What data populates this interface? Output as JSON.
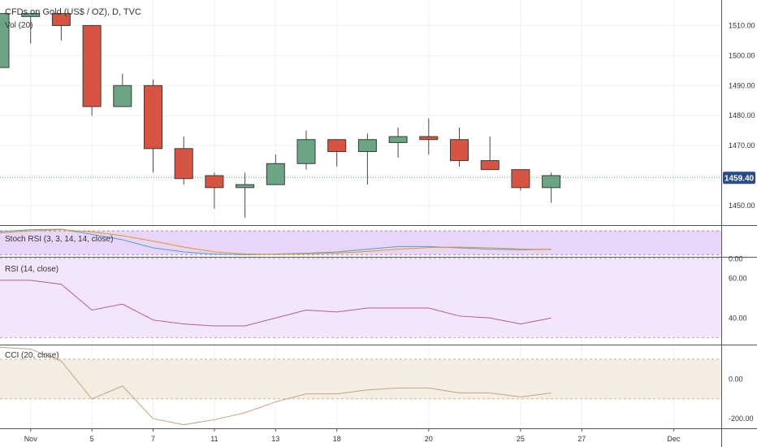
{
  "header": {
    "symbol_title": "CFDs on Gold (US$ / OZ), D, TVC",
    "volume_label": "Vol (20)"
  },
  "price_pane": {
    "last_price": "1459.40",
    "last_price_color": "#2a4a8a",
    "up_color": "#6ba583",
    "down_color": "#d75442",
    "y_ticks": [
      "1510.00",
      "1500.00",
      "1490.00",
      "1480.00",
      "1470.00",
      "1460.00",
      "1450.00"
    ]
  },
  "stoch_pane": {
    "label": "Stoch RSI (3, 3, 14, 14, close)",
    "y_ticks": [
      "0.00"
    ],
    "band_color": "#e9d5f7"
  },
  "rsi_pane": {
    "label": "RSI (14, close)",
    "y_ticks": [
      "60.00",
      "40.00"
    ],
    "band_color": "#f3e6fb",
    "line_color": "#b0608f"
  },
  "cci_pane": {
    "label": "CCI (20, close)",
    "y_ticks": [
      "0.00",
      "-200.00"
    ],
    "band_color": "#f3ede2",
    "line_color": "#c9a27e"
  },
  "x_axis": {
    "ticks": [
      "Nov",
      "5",
      "7",
      "11",
      "13",
      "18",
      "20",
      "25",
      "27",
      "Dec"
    ]
  },
  "chart_data": {
    "type": "candlestick",
    "title": "CFDs on Gold (US$ / OZ), D, TVC",
    "price_ylim": [
      1443.5,
      1518.5
    ],
    "candles": [
      {
        "open": 1496,
        "high": 1514,
        "low": 1496,
        "close": 1514
      },
      {
        "open": 1513,
        "high": 1514,
        "low": 1504,
        "close": 1514
      },
      {
        "open": 1514,
        "high": 1514,
        "low": 1505,
        "close": 1510
      },
      {
        "open": 1510,
        "high": 1510,
        "low": 1480,
        "close": 1483
      },
      {
        "open": 1483,
        "high": 1494,
        "low": 1483,
        "close": 1490
      },
      {
        "open": 1490,
        "high": 1492,
        "low": 1461,
        "close": 1469
      },
      {
        "open": 1469,
        "high": 1473,
        "low": 1457,
        "close": 1459
      },
      {
        "open": 1460,
        "high": 1461,
        "low": 1449,
        "close": 1456
      },
      {
        "open": 1456,
        "high": 1461,
        "low": 1446,
        "close": 1457
      },
      {
        "open": 1457,
        "high": 1467,
        "low": 1457,
        "close": 1464
      },
      {
        "open": 1464,
        "high": 1475,
        "low": 1462,
        "close": 1472
      },
      {
        "open": 1472,
        "high": 1472,
        "low": 1463,
        "close": 1468
      },
      {
        "open": 1468,
        "high": 1474,
        "low": 1457,
        "close": 1472
      },
      {
        "open": 1471,
        "high": 1476,
        "low": 1466,
        "close": 1473
      },
      {
        "open": 1473,
        "high": 1479,
        "low": 1467,
        "close": 1472
      },
      {
        "open": 1472,
        "high": 1476,
        "low": 1463,
        "close": 1465
      },
      {
        "open": 1465,
        "high": 1473,
        "low": 1462,
        "close": 1462
      },
      {
        "open": 1462,
        "high": 1462,
        "low": 1455,
        "close": 1456
      },
      {
        "open": 1456,
        "high": 1461,
        "low": 1451,
        "close": 1460
      }
    ],
    "rsi": [
      59,
      59,
      57,
      44,
      47,
      39,
      37,
      36,
      36,
      40,
      44,
      43,
      45,
      45,
      45,
      41,
      40,
      37,
      40
    ],
    "rsi_ylim": [
      27,
      70
    ],
    "rsi_band": [
      30,
      70
    ],
    "stoch_k": [
      0.85,
      0.92,
      0.94,
      0.75,
      0.55,
      0.25,
      0.1,
      0.02,
      0.0,
      0.02,
      0.05,
      0.1,
      0.2,
      0.3,
      0.3,
      0.25,
      0.2,
      0.18,
      0.2
    ],
    "stoch_d": [
      0.8,
      0.88,
      0.92,
      0.84,
      0.7,
      0.5,
      0.28,
      0.1,
      0.03,
      0.01,
      0.03,
      0.06,
      0.12,
      0.2,
      0.26,
      0.28,
      0.25,
      0.21,
      0.19
    ],
    "stoch_ylim": [
      -0.05,
      1.0
    ],
    "stoch_band": [
      0.0,
      1.0
    ],
    "cci": [
      160,
      150,
      90,
      -100,
      -35,
      -200,
      -230,
      -205,
      -170,
      -115,
      -75,
      -75,
      -55,
      -45,
      -45,
      -70,
      -70,
      -90,
      -70
    ],
    "cci_ylim": [
      -240,
      165
    ],
    "cci_band": [
      -100,
      100
    ]
  }
}
